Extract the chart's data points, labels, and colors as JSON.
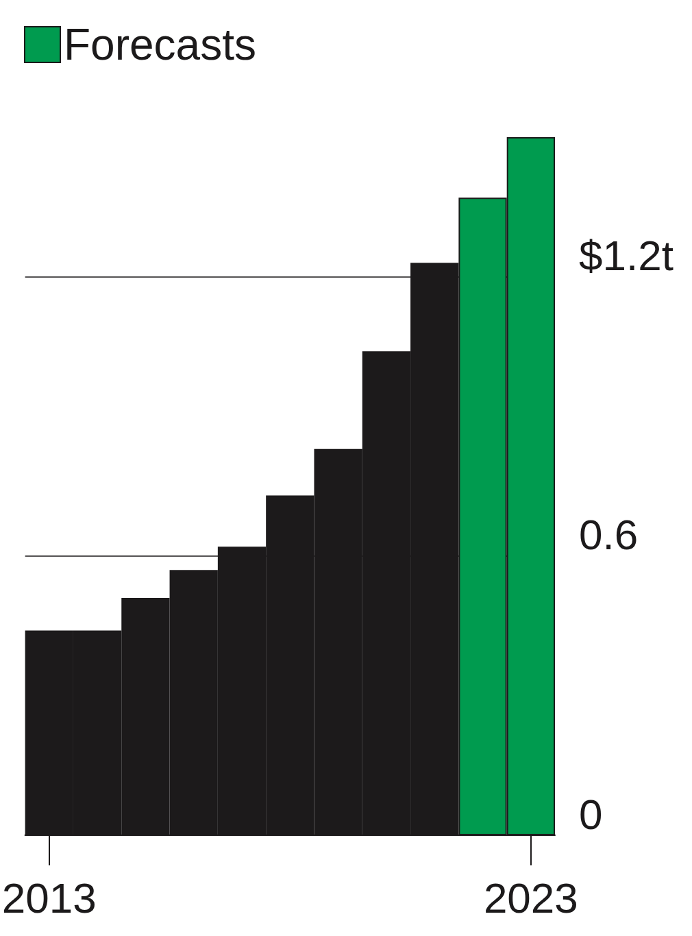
{
  "chart_data": {
    "type": "bar",
    "categories": [
      "2013",
      null,
      null,
      null,
      null,
      null,
      null,
      null,
      null,
      null,
      "2023"
    ],
    "series": [
      {
        "color": "#1c1a1b",
        "values": [
          0.44,
          0.44,
          0.51,
          0.57,
          0.62,
          0.73,
          0.83,
          1.04,
          1.23,
          null,
          null
        ]
      },
      {
        "name": "Forecasts",
        "color": "#009b4f",
        "values": [
          null,
          null,
          null,
          null,
          null,
          null,
          null,
          null,
          null,
          1.37,
          1.5
        ]
      }
    ],
    "ylim": [
      0,
      1.5
    ],
    "yticks": [
      0,
      0.6,
      {
        "value": 1.2,
        "label": "$1.2t"
      }
    ],
    "grid": "y",
    "legend": "top left"
  }
}
